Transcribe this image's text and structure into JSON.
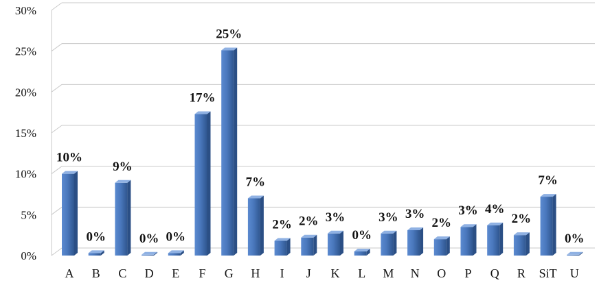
{
  "chart_data": {
    "type": "bar",
    "title": "",
    "xlabel": "",
    "ylabel": "",
    "ylim": [
      0,
      30
    ],
    "y_ticks": [
      0,
      5,
      10,
      15,
      20,
      25,
      30
    ],
    "y_tick_format": "percent",
    "grid": true,
    "bar_color": "#4a78bd",
    "categories": [
      "A",
      "B",
      "C",
      "D",
      "E",
      "F",
      "G",
      "H",
      "I",
      "J",
      "K",
      "L",
      "M",
      "N",
      "O",
      "P",
      "Q",
      "R",
      "SiT",
      "U"
    ],
    "values": [
      10.0,
      0.3,
      8.9,
      0.1,
      0.3,
      17.3,
      25.1,
      7.0,
      1.8,
      2.2,
      2.7,
      0.5,
      2.7,
      3.1,
      2.0,
      3.5,
      3.7,
      2.5,
      7.2,
      0.1
    ],
    "data_labels": [
      "10%",
      "0%",
      "9%",
      "0%",
      "0%",
      "17%",
      "25%",
      "7%",
      "2%",
      "2%",
      "3%",
      "0%",
      "3%",
      "3%",
      "2%",
      "3%",
      "4%",
      "2%",
      "7%",
      "0%"
    ]
  }
}
